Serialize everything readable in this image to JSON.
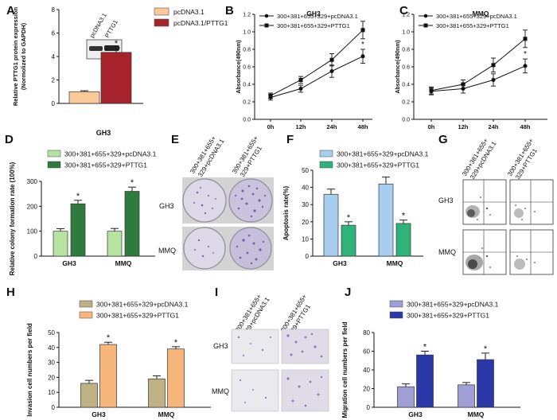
{
  "panel_letters": {
    "A": "A",
    "B": "B",
    "C": "C",
    "D": "D",
    "E": "E",
    "F": "F",
    "G": "G",
    "H": "H",
    "I": "I",
    "J": "J"
  },
  "colors": {
    "a_s1": "#f9c99a",
    "a_s2": "#a7232c",
    "d_s1": "#b7e3a1",
    "d_s2": "#2f7b3e",
    "f_s1": "#a9cdef",
    "f_s2": "#2fb37a",
    "h_s1": "#beb184",
    "h_s2": "#f6b57a",
    "j_s1": "#9f9fd6",
    "j_s2": "#2b39a8"
  },
  "chart_data": [
    {
      "id": "A",
      "type": "bar",
      "title": "",
      "ylabel": "Relative PTTG1 protein expression (Normolized to GAPDH)",
      "ylabel_lines": [
        "Relative PTTG1 protein expression",
        "(Normolized to GAPDH)"
      ],
      "xlabel": "GH3",
      "ylim": [
        0,
        8
      ],
      "yticks": [
        "0",
        "2",
        "4",
        "6",
        "8"
      ],
      "categories": [
        "GH3"
      ],
      "series": [
        {
          "name": "pcDNA3.1",
          "values": [
            1.0
          ],
          "errors": [
            0.08
          ],
          "sig": [
            ""
          ]
        },
        {
          "name": "pcDNA3.1/PTTG1",
          "values": [
            4.35
          ],
          "errors": [
            0.38
          ],
          "sig": [
            "*"
          ]
        }
      ],
      "blot_lanes": [
        "pcDNA3.1",
        "PTTG1"
      ]
    },
    {
      "id": "B",
      "type": "line",
      "title": "GH3",
      "ylabel": "Absorbance(490nm)",
      "ylim": [
        0,
        1.2
      ],
      "yticks": [
        "0.0",
        "0.2",
        "0.4",
        "0.6",
        "0.8",
        "1.0",
        "1.2"
      ],
      "categories": [
        "0h",
        "12h",
        "24h",
        "48h"
      ],
      "series": [
        {
          "name": "300+381+655+329+pcDNA3.1",
          "values": [
            0.25,
            0.35,
            0.55,
            0.72
          ],
          "errors": [
            0.03,
            0.04,
            0.07,
            0.08
          ],
          "sig": [
            "",
            "",
            "",
            "*"
          ]
        },
        {
          "name": "300+381+655+329+PTTG1",
          "values": [
            0.27,
            0.45,
            0.68,
            1.02
          ],
          "errors": [
            0.03,
            0.04,
            0.07,
            0.1
          ],
          "sig": [
            "",
            "",
            "",
            ""
          ]
        }
      ]
    },
    {
      "id": "C",
      "type": "line",
      "title": "MMQ",
      "ylabel": "Absorbance(490nm)",
      "ylim": [
        0,
        1.2
      ],
      "yticks": [
        "0.0",
        "0.2",
        "0.4",
        "0.6",
        "0.8",
        "1.0",
        "1.2"
      ],
      "categories": [
        "0h",
        "12h",
        "24h",
        "48h"
      ],
      "series": [
        {
          "name": "300+381+655+329+pcDNA3.1",
          "values": [
            0.32,
            0.35,
            0.45,
            0.61
          ],
          "errors": [
            0.04,
            0.05,
            0.07,
            0.08
          ],
          "sig": [
            "",
            "",
            "",
            "*"
          ]
        },
        {
          "name": "300+381+655+329+PTTG1",
          "values": [
            0.33,
            0.4,
            0.62,
            0.92
          ],
          "errors": [
            0.04,
            0.05,
            0.08,
            0.1
          ],
          "sig": [
            "",
            "",
            "",
            ""
          ]
        }
      ]
    },
    {
      "id": "D",
      "type": "bar",
      "ylabel": "Relative colony formation rate (100%)",
      "ylim": [
        0,
        300
      ],
      "yticks": [
        "0",
        "100",
        "200",
        "300"
      ],
      "categories": [
        "GH3",
        "MMQ"
      ],
      "series": [
        {
          "name": "300+381+655+329+pcDNA3.1",
          "values": [
            100,
            100
          ],
          "errors": [
            10,
            11
          ],
          "sig": [
            "",
            ""
          ]
        },
        {
          "name": "300+381+655+329+PTTG1",
          "values": [
            210,
            260
          ],
          "errors": [
            14,
            17
          ],
          "sig": [
            "*",
            "*"
          ]
        }
      ]
    },
    {
      "id": "F",
      "type": "bar",
      "ylabel": "Apoptosis rate(%)",
      "ylim": [
        0,
        50
      ],
      "yticks": [
        "0",
        "10",
        "20",
        "30",
        "40",
        "50"
      ],
      "categories": [
        "GH3",
        "MMQ"
      ],
      "series": [
        {
          "name": "300+381+655+329+pcDNA3.1",
          "values": [
            36,
            42
          ],
          "errors": [
            3,
            4
          ],
          "sig": [
            "",
            ""
          ]
        },
        {
          "name": "300+381+655+329+PTTG1",
          "values": [
            18,
            19
          ],
          "errors": [
            2,
            2
          ],
          "sig": [
            "*",
            "*"
          ]
        }
      ]
    },
    {
      "id": "H",
      "type": "bar",
      "ylabel": "Invasion cell numbers per field",
      "ylim": [
        0,
        50
      ],
      "yticks": [
        "0",
        "10",
        "20",
        "30",
        "40",
        "50"
      ],
      "categories": [
        "GH3",
        "MMQ"
      ],
      "series": [
        {
          "name": "300+381+655+329+pcDNA3.1",
          "values": [
            16,
            19
          ],
          "errors": [
            2,
            2
          ],
          "sig": [
            "",
            ""
          ]
        },
        {
          "name": "300+381+655+329+PTTG1",
          "values": [
            42,
            39
          ],
          "errors": [
            1.5,
            1.5
          ],
          "sig": [
            "*",
            "*"
          ]
        }
      ]
    },
    {
      "id": "J",
      "type": "bar",
      "ylabel": "Migration cell numbers per field",
      "ylim": [
        0,
        80
      ],
      "yticks": [
        "0",
        "20",
        "40",
        "60",
        "80"
      ],
      "categories": [
        "GH3",
        "MMQ"
      ],
      "series": [
        {
          "name": "300+381+655+329+pcDNA3.1",
          "values": [
            22,
            24
          ],
          "errors": [
            3,
            2.5
          ],
          "sig": [
            "",
            ""
          ]
        },
        {
          "name": "300+381+655+329+PTTG1",
          "values": [
            56,
            51
          ],
          "errors": [
            4,
            7
          ],
          "sig": [
            "*",
            "*"
          ]
        }
      ]
    }
  ],
  "image_panels": {
    "E": {
      "col_headers": [
        [
          "300+381+655+",
          "329+pcDNA3.1"
        ],
        [
          "300+381+655+",
          "329+PTTG1"
        ]
      ],
      "row_labels": [
        "GH3",
        "MMQ"
      ]
    },
    "G": {
      "col_headers": [
        [
          "300+381+655+",
          "329+pcDNA3.1"
        ],
        [
          "300+381+655+",
          "329+PTTG1"
        ]
      ],
      "row_labels": [
        "GH3",
        "MMQ"
      ]
    },
    "I": {
      "col_headers": [
        [
          "300+381+655+",
          "329+pcDNA3.1"
        ],
        [
          "300+381+655+",
          "329+PTTG1"
        ]
      ],
      "row_labels": [
        "GH3",
        "MMQ"
      ]
    }
  }
}
